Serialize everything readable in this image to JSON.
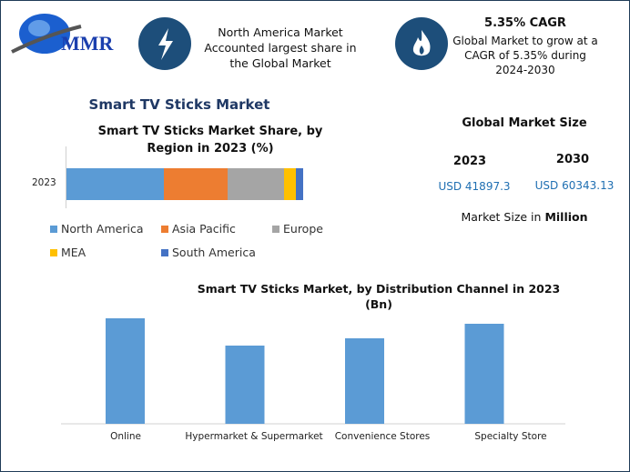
{
  "logo": {
    "text": "MMR"
  },
  "highlight1": {
    "icon": "lightning-icon",
    "text": "North America Market Accounted largest share in the Global Market"
  },
  "highlight2": {
    "icon": "flame-icon",
    "title": "5.35% CAGR",
    "text": "Global Market to grow at a CAGR of 5.35% during 2024-2030"
  },
  "main_title": "Smart TV Sticks Market",
  "market_size": {
    "title": "Global Market Size",
    "year1": "2023",
    "value1": "USD 41897.3",
    "year2": "2030",
    "value2": "USD 60343.13",
    "note_prefix": "Market Size in ",
    "note_bold": "Million"
  },
  "colors": {
    "accent": "#1d4e7a",
    "value_text": "#1f6fb2"
  },
  "chart_data": [
    {
      "type": "bar",
      "orientation": "horizontal",
      "stacked": true,
      "title": "Smart TV Sticks Market Share, by Region in 2023 (%)",
      "categories": [
        "2023"
      ],
      "series": [
        {
          "name": "North America",
          "values": [
            41.2
          ],
          "color": "#5b9bd5"
        },
        {
          "name": "Asia Pacific",
          "values": [
            26.9
          ],
          "color": "#ed7d31"
        },
        {
          "name": "Europe",
          "values": [
            23.8
          ],
          "color": "#a5a5a5"
        },
        {
          "name": "MEA",
          "values": [
            5.0
          ],
          "color": "#ffc000"
        },
        {
          "name": "South America",
          "values": [
            3.1
          ],
          "color": "#4472c4"
        }
      ],
      "legend": "bottom",
      "grid": false
    },
    {
      "type": "bar",
      "title": "Smart TV Sticks Market, by Distribution Channel in 2023 (Bn)",
      "categories": [
        "Online",
        "Hypermarket & Supermarket",
        "Convenience Stores",
        "Specialty Store"
      ],
      "values": [
        11.6,
        8.6,
        9.4,
        11.0
      ],
      "color": "#5b9bd5",
      "ylim": [
        0,
        12
      ],
      "grid": false
    }
  ]
}
